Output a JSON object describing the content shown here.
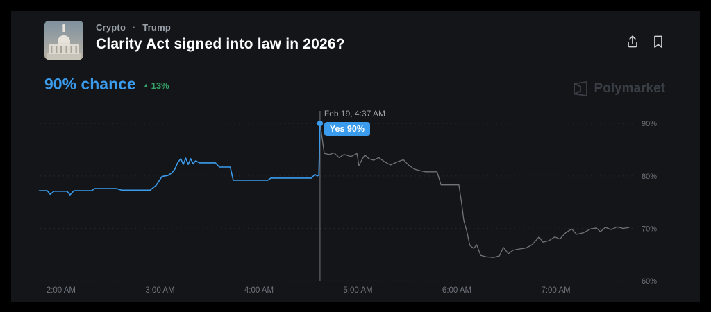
{
  "header": {
    "breadcrumb": {
      "category": "Crypto",
      "separator": "·",
      "subcategory": "Trump"
    },
    "title": "Clarity Act signed into law in 2026?"
  },
  "market": {
    "chance_value": "90%",
    "chance_label": "chance",
    "delta_arrow": "▲",
    "delta_value": "13%"
  },
  "watermark": {
    "label": "Polymarket"
  },
  "chart_data": {
    "type": "line",
    "title": "Yes price over time",
    "x_unit": "time of day (AM)",
    "y_unit": "percent chance",
    "x_domain": [
      1.776,
      7.796
    ],
    "y_domain": [
      58.5,
      92.0
    ],
    "grid": true,
    "legend": "none",
    "y_ticks": [
      {
        "v": 90,
        "label": "90%"
      },
      {
        "v": 80,
        "label": "80%"
      },
      {
        "v": 70,
        "label": "70%"
      },
      {
        "v": 60,
        "label": "60%"
      }
    ],
    "x_ticks": [
      {
        "t": 2,
        "label": "2:00 AM"
      },
      {
        "t": 3,
        "label": "3:00 AM"
      },
      {
        "t": 4,
        "label": "4:00 AM"
      },
      {
        "t": 5,
        "label": "5:00 AM"
      },
      {
        "t": 6,
        "label": "6:00 AM"
      },
      {
        "t": 7,
        "label": "7:00 AM"
      }
    ],
    "crosshair": {
      "t": 4.617,
      "value": 90,
      "date_label": "Feb 19, 4:37 AM",
      "pill_label": "Yes 90%"
    },
    "colors": {
      "highlight": "#3b9ced",
      "dimmed": "#8f9398",
      "grid": "#2b2e33",
      "axis_text": "#6e747b",
      "crosshair": "#70757c"
    },
    "series": [
      {
        "name": "yes-highlighted",
        "color": "#3b9ced",
        "width": 1.6,
        "opacity": 1,
        "points": [
          [
            1.78,
            77.2
          ],
          [
            1.86,
            77.2
          ],
          [
            1.89,
            76.5
          ],
          [
            1.93,
            77.1
          ],
          [
            2.06,
            77.1
          ],
          [
            2.09,
            76.4
          ],
          [
            2.13,
            77.2
          ],
          [
            2.31,
            77.2
          ],
          [
            2.34,
            77.6
          ],
          [
            2.56,
            77.6
          ],
          [
            2.61,
            77.3
          ],
          [
            2.9,
            77.3
          ],
          [
            2.96,
            78.2
          ],
          [
            3.02,
            79.9
          ],
          [
            3.08,
            80.1
          ],
          [
            3.12,
            80.6
          ],
          [
            3.15,
            81.3
          ],
          [
            3.18,
            82.6
          ],
          [
            3.21,
            83.3
          ],
          [
            3.235,
            82.2
          ],
          [
            3.26,
            83.4
          ],
          [
            3.285,
            82.2
          ],
          [
            3.31,
            83.3
          ],
          [
            3.335,
            82.3
          ],
          [
            3.36,
            82.9
          ],
          [
            3.4,
            82.5
          ],
          [
            3.56,
            82.5
          ],
          [
            3.6,
            81.7
          ],
          [
            3.71,
            81.7
          ],
          [
            3.74,
            79.2
          ],
          [
            4.09,
            79.2
          ],
          [
            4.12,
            79.6
          ],
          [
            4.53,
            79.6
          ],
          [
            4.565,
            80.3
          ],
          [
            4.59,
            80.0
          ],
          [
            4.605,
            80.2
          ],
          [
            4.617,
            90.0
          ]
        ]
      },
      {
        "name": "yes-dimmed",
        "color": "#8f9398",
        "width": 1.3,
        "opacity": 0.75,
        "points": [
          [
            4.617,
            90.0
          ],
          [
            4.64,
            87.0
          ],
          [
            4.66,
            84.3
          ],
          [
            4.71,
            84.1
          ],
          [
            4.76,
            84.4
          ],
          [
            4.81,
            83.5
          ],
          [
            4.86,
            84.1
          ],
          [
            4.93,
            83.7
          ],
          [
            4.99,
            84.3
          ],
          [
            5.01,
            82.0
          ],
          [
            5.04,
            83.1
          ],
          [
            5.07,
            84.0
          ],
          [
            5.11,
            83.3
          ],
          [
            5.16,
            83.0
          ],
          [
            5.21,
            83.5
          ],
          [
            5.27,
            82.7
          ],
          [
            5.33,
            82.1
          ],
          [
            5.4,
            82.7
          ],
          [
            5.46,
            83.1
          ],
          [
            5.51,
            82.1
          ],
          [
            5.57,
            81.3
          ],
          [
            5.63,
            81.0
          ],
          [
            5.68,
            80.8
          ],
          [
            5.8,
            80.8
          ],
          [
            5.84,
            78.3
          ],
          [
            6.02,
            78.3
          ],
          [
            6.05,
            74.5
          ],
          [
            6.07,
            71.5
          ],
          [
            6.1,
            69.5
          ],
          [
            6.13,
            66.8
          ],
          [
            6.17,
            66.2
          ],
          [
            6.2,
            66.9
          ],
          [
            6.24,
            64.9
          ],
          [
            6.3,
            64.6
          ],
          [
            6.37,
            64.5
          ],
          [
            6.43,
            64.8
          ],
          [
            6.47,
            66.4
          ],
          [
            6.52,
            65.2
          ],
          [
            6.57,
            65.9
          ],
          [
            6.63,
            66.1
          ],
          [
            6.7,
            66.3
          ],
          [
            6.76,
            66.9
          ],
          [
            6.83,
            68.4
          ],
          [
            6.87,
            67.4
          ],
          [
            6.93,
            67.7
          ],
          [
            6.99,
            68.4
          ],
          [
            7.04,
            68.0
          ],
          [
            7.1,
            69.2
          ],
          [
            7.16,
            69.9
          ],
          [
            7.21,
            68.9
          ],
          [
            7.28,
            69.2
          ],
          [
            7.35,
            69.9
          ],
          [
            7.41,
            70.1
          ],
          [
            7.45,
            69.4
          ],
          [
            7.5,
            70.2
          ],
          [
            7.56,
            69.8
          ],
          [
            7.62,
            70.3
          ],
          [
            7.68,
            70.0
          ],
          [
            7.74,
            70.2
          ]
        ]
      }
    ]
  }
}
